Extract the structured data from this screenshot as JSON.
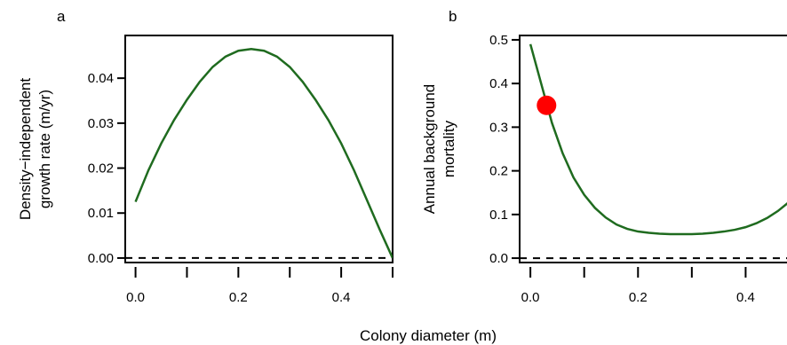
{
  "figure": {
    "shared_xlabel": "Colony diameter (m)",
    "line_color": "#1f6b1f",
    "marker_color": "#ff0000",
    "reference_line_color": "#000000"
  },
  "chart_data": [
    {
      "type": "line",
      "panel_label": "a",
      "title": "",
      "xlabel": "",
      "ylabel": "Density−independent growth rate (m/yr)",
      "ylabel_lines": [
        "Density−independent",
        "growth rate (m/yr)"
      ],
      "xlim": [
        -0.02,
        0.5
      ],
      "ylim": [
        -0.001,
        0.0495
      ],
      "x_ticks": [
        0.0,
        0.1,
        0.2,
        0.3,
        0.4,
        0.5
      ],
      "x_tick_labels": [
        "0.0",
        "",
        "0.2",
        "",
        "0.4",
        ""
      ],
      "y_ticks": [
        0.0,
        0.01,
        0.02,
        0.03,
        0.04
      ],
      "y_tick_labels": [
        "0.00",
        "0.01",
        "0.02",
        "0.03",
        "0.04"
      ],
      "hline": 0,
      "series": [
        {
          "x": [
            0.0,
            0.025,
            0.05,
            0.075,
            0.1,
            0.125,
            0.15,
            0.175,
            0.2,
            0.225,
            0.25,
            0.275,
            0.3,
            0.325,
            0.35,
            0.375,
            0.4,
            0.425,
            0.45,
            0.475,
            0.5
          ],
          "y": [
            0.0125,
            0.0195,
            0.0255,
            0.0307,
            0.0352,
            0.0392,
            0.0425,
            0.0448,
            0.0461,
            0.0465,
            0.0461,
            0.0448,
            0.0425,
            0.0392,
            0.0352,
            0.0307,
            0.0255,
            0.0195,
            0.0129,
            0.0063,
            0.0
          ]
        }
      ],
      "grid": false,
      "legend": "none"
    },
    {
      "type": "line",
      "panel_label": "b",
      "title": "",
      "xlabel": "",
      "ylabel": "Annual background mortality",
      "ylabel_lines": [
        "Annual background",
        "mortality"
      ],
      "xlim": [
        -0.02,
        0.5
      ],
      "ylim": [
        -0.01,
        0.51
      ],
      "x_ticks": [
        0.0,
        0.1,
        0.2,
        0.3,
        0.4,
        0.5
      ],
      "x_tick_labels": [
        "0.0",
        "",
        "0.2",
        "",
        "0.4",
        ""
      ],
      "y_ticks": [
        0.0,
        0.1,
        0.2,
        0.3,
        0.4,
        0.5
      ],
      "y_tick_labels": [
        "0.0",
        "0.1",
        "0.2",
        "0.3",
        "0.4",
        "0.5"
      ],
      "hline": 0,
      "series": [
        {
          "x": [
            0.0,
            0.02,
            0.04,
            0.06,
            0.08,
            0.1,
            0.12,
            0.14,
            0.16,
            0.18,
            0.2,
            0.22,
            0.24,
            0.26,
            0.28,
            0.3,
            0.32,
            0.34,
            0.36,
            0.38,
            0.4,
            0.42,
            0.44,
            0.46,
            0.48,
            0.5
          ],
          "y": [
            0.49,
            0.4,
            0.31,
            0.24,
            0.185,
            0.145,
            0.115,
            0.093,
            0.077,
            0.067,
            0.061,
            0.058,
            0.056,
            0.055,
            0.055,
            0.055,
            0.056,
            0.058,
            0.061,
            0.065,
            0.071,
            0.08,
            0.092,
            0.108,
            0.128,
            0.15
          ]
        }
      ],
      "points": [
        {
          "x": 0.03,
          "y": 0.35
        }
      ],
      "grid": false,
      "legend": "none"
    }
  ]
}
